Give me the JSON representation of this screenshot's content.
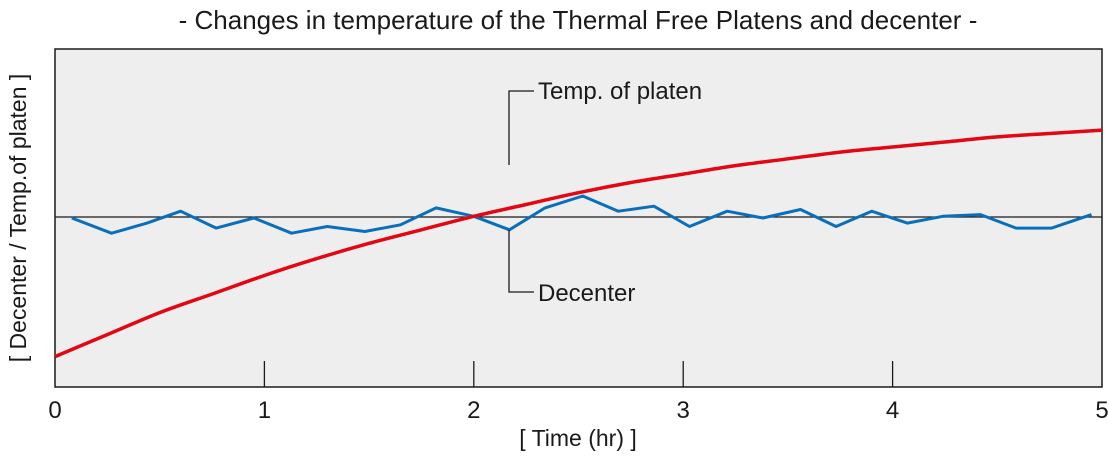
{
  "chart_data": {
    "type": "line",
    "title": "- Changes in temperature of the Thermal Free Platens and decenter -",
    "xlabel": "[ Time (hr) ]",
    "ylabel": "[ Decenter / Temp.of platen ]",
    "xlim": [
      0,
      5
    ],
    "ylim": [
      -1,
      1
    ],
    "x_ticks": [
      "0",
      "1",
      "2",
      "3",
      "4",
      "5"
    ],
    "grid": false,
    "colors": {
      "background": "#eeeeee",
      "platen": "#e30613",
      "decenter": "#0a6fba"
    },
    "series": [
      {
        "name": "Temp. of platen",
        "x": [
          0,
          0.25,
          0.5,
          0.75,
          1,
          1.25,
          1.5,
          1.75,
          2,
          2.25,
          2.5,
          2.75,
          3,
          3.25,
          3.5,
          3.75,
          4,
          4.25,
          4.5,
          4.75,
          5
        ],
        "values": [
          -0.82,
          -0.69,
          -0.56,
          -0.45,
          -0.34,
          -0.24,
          -0.15,
          -0.07,
          0.01,
          0.08,
          0.15,
          0.21,
          0.26,
          0.31,
          0.35,
          0.39,
          0.42,
          0.45,
          0.48,
          0.5,
          0.52
        ]
      },
      {
        "name": "Decenter",
        "x": [
          0.08,
          0.27,
          0.44,
          0.6,
          0.77,
          0.95,
          1.13,
          1.3,
          1.48,
          1.65,
          1.82,
          2.0,
          2.17,
          2.34,
          2.52,
          2.69,
          2.86,
          3.03,
          3.21,
          3.38,
          3.56,
          3.73,
          3.9,
          4.07,
          4.24,
          4.42,
          4.59,
          4.76,
          4.95
        ],
        "values": [
          0.0,
          -0.09,
          -0.03,
          0.04,
          -0.06,
          0.0,
          -0.09,
          -0.05,
          -0.08,
          -0.04,
          0.06,
          0.01,
          -0.07,
          0.06,
          0.13,
          0.04,
          0.07,
          -0.05,
          0.04,
          0.0,
          0.05,
          -0.05,
          0.04,
          -0.03,
          0.01,
          0.02,
          -0.06,
          -0.06,
          0.02
        ]
      }
    ]
  }
}
